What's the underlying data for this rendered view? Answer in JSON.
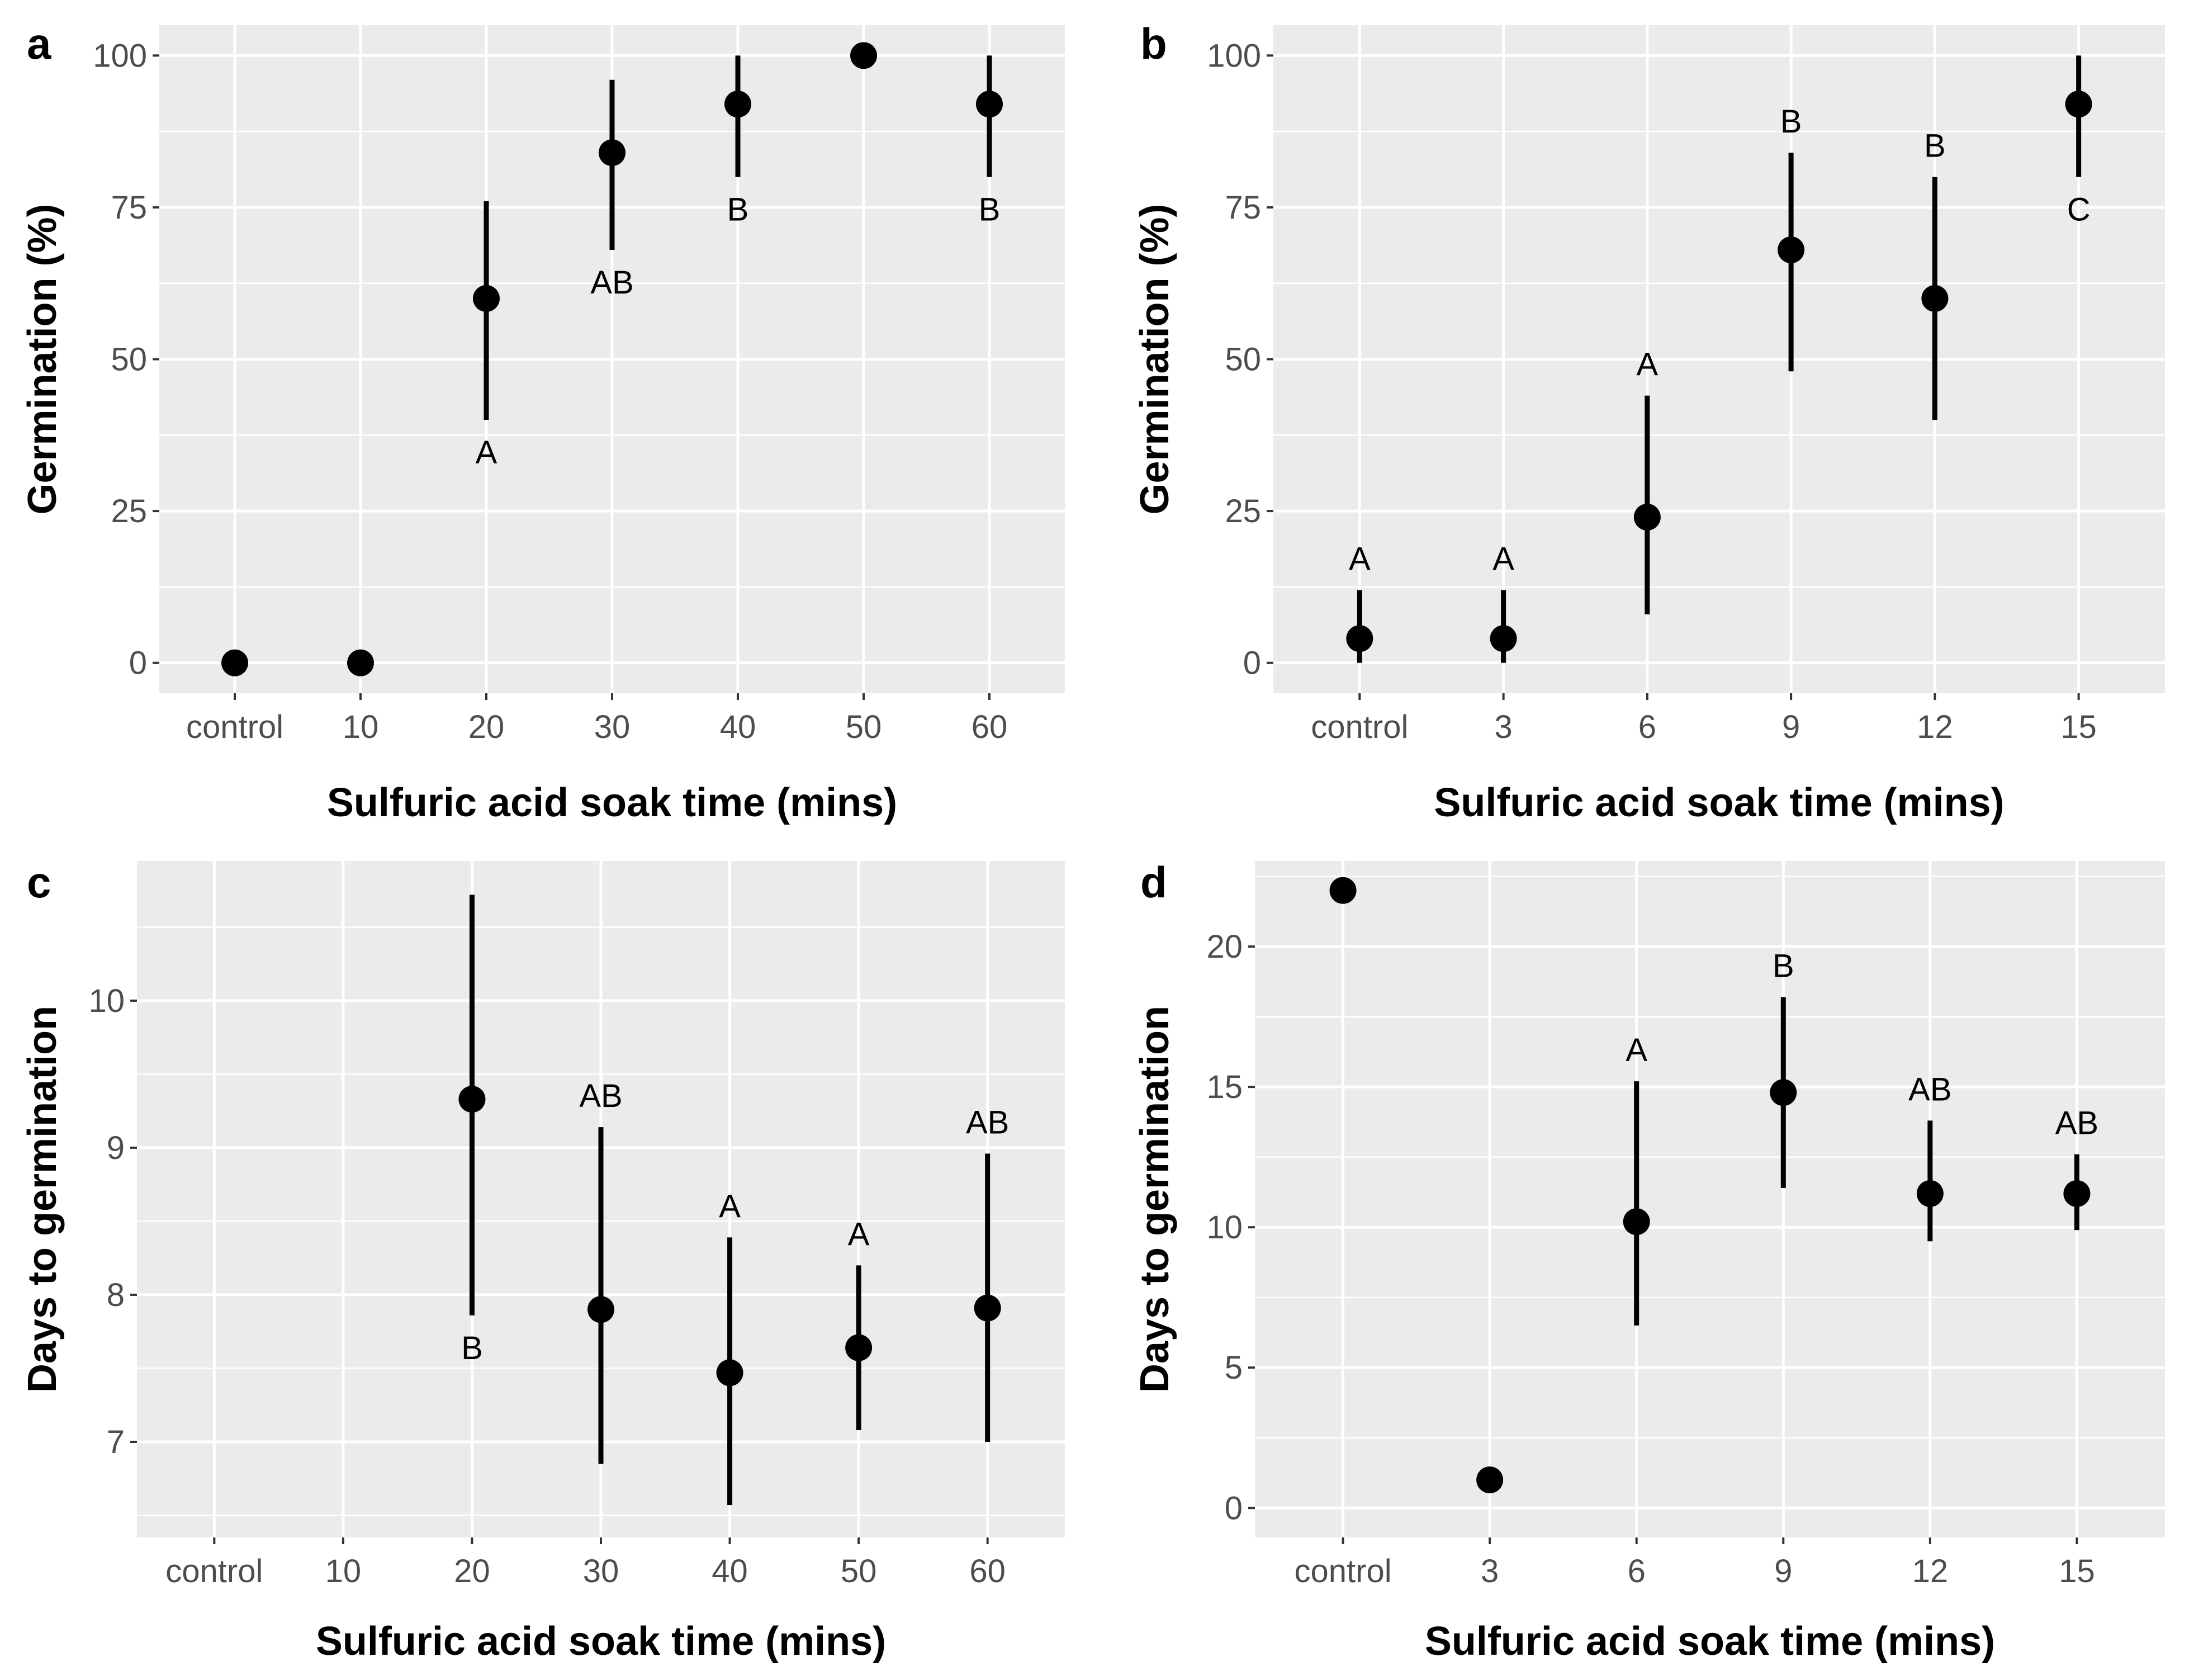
{
  "figure": {
    "x_title": "Sulfuric acid soak time (mins)"
  },
  "colors": {
    "panel_background": "#ebebeb",
    "grid": "#ffffff",
    "points": "#000000",
    "tick_text": "#4d4d4d"
  },
  "chart_data": [
    {
      "type": "scatter",
      "panel": "a",
      "ylabel": "Germination (%)",
      "xlabel": "Sulfuric acid soak time (mins)",
      "categories": [
        "control",
        "10",
        "20",
        "30",
        "40",
        "50",
        "60"
      ],
      "values": [
        0,
        0,
        60,
        84,
        92,
        100,
        92
      ],
      "err_low": [
        null,
        null,
        40,
        68,
        80,
        null,
        80
      ],
      "err_high": [
        null,
        null,
        76,
        96,
        100,
        null,
        100
      ],
      "letters": [
        "",
        "",
        "A",
        "AB",
        "B",
        "",
        "B"
      ],
      "letter_pos": [
        "",
        "",
        "below",
        "below",
        "below",
        "",
        "below"
      ],
      "ylim": [
        -5,
        105
      ],
      "yticks": [
        0,
        25,
        50,
        75,
        100
      ],
      "yminor": [
        12.5,
        37.5,
        62.5,
        87.5
      ]
    },
    {
      "type": "scatter",
      "panel": "b",
      "ylabel": "Germination (%)",
      "xlabel": "Sulfuric acid soak time (mins)",
      "categories": [
        "control",
        "3",
        "6",
        "9",
        "12",
        "15"
      ],
      "values": [
        4,
        4,
        24,
        68,
        60,
        92
      ],
      "err_low": [
        0,
        0,
        8,
        48,
        40,
        80
      ],
      "err_high": [
        12,
        12,
        44,
        84,
        80,
        100
      ],
      "letters": [
        "A",
        "A",
        "A",
        "B",
        "B",
        "C"
      ],
      "letter_pos": [
        "above",
        "above",
        "above",
        "above",
        "above",
        "below"
      ],
      "ylim": [
        -5,
        105
      ],
      "yticks": [
        0,
        25,
        50,
        75,
        100
      ],
      "yminor": [
        12.5,
        37.5,
        62.5,
        87.5
      ]
    },
    {
      "type": "scatter",
      "panel": "c",
      "ylabel": "Days to germination",
      "xlabel": "Sulfuric acid soak time (mins)",
      "categories": [
        "control",
        "10",
        "20",
        "30",
        "40",
        "50",
        "60"
      ],
      "values": [
        null,
        null,
        9.33,
        7.9,
        7.47,
        7.64,
        7.91
      ],
      "err_low": [
        null,
        null,
        7.86,
        6.85,
        6.57,
        7.08,
        7.0
      ],
      "err_high": [
        null,
        null,
        10.72,
        9.14,
        8.39,
        8.2,
        8.96
      ],
      "letters": [
        "",
        "",
        "B",
        "AB",
        "A",
        "A",
        "AB"
      ],
      "letter_pos": [
        "",
        "",
        "below",
        "above",
        "above",
        "above",
        "above"
      ],
      "ylim": [
        6.35,
        10.95
      ],
      "yticks": [
        7,
        8,
        9,
        10
      ],
      "yminor": [
        6.5,
        7.5,
        8.5,
        9.5,
        10.5
      ]
    },
    {
      "type": "scatter",
      "panel": "d",
      "ylabel": "Days to germination",
      "xlabel": "Sulfuric acid soak time (mins)",
      "categories": [
        "control",
        "3",
        "6",
        "9",
        "12",
        "15"
      ],
      "values": [
        22,
        1,
        10.2,
        14.8,
        11.2,
        11.2
      ],
      "err_low": [
        null,
        null,
        6.5,
        11.4,
        9.5,
        9.9
      ],
      "err_high": [
        null,
        null,
        15.2,
        18.2,
        13.8,
        12.6
      ],
      "letters": [
        "",
        "",
        "A",
        "B",
        "AB",
        "AB"
      ],
      "letter_pos": [
        "",
        "",
        "above",
        "above",
        "above",
        "above"
      ],
      "ylim": [
        -1.05,
        23.05
      ],
      "yticks": [
        0,
        5,
        10,
        15,
        20
      ],
      "yminor": [
        2.5,
        7.5,
        12.5,
        17.5,
        22.5
      ]
    }
  ]
}
